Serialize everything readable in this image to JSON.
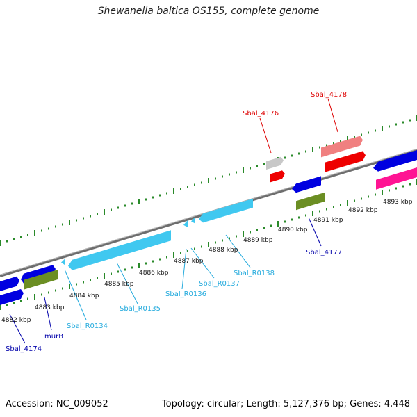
{
  "title": "Shewanella baltica OS155, complete genome",
  "accession": "Accession: NC_009052",
  "topology": "Topology: circular; Length: 5,127,376 bp; Genes: 4,448",
  "colors": {
    "tick_green": "#2a8a2a",
    "backbone": "#8a8a8a",
    "gene_blue": "#0000e0",
    "rna_cyan": "#40c8f0",
    "olive": "#6b8e23",
    "red": "#ee0000",
    "pink_light": "#f08080",
    "magenta": "#ff1493",
    "grey_gene": "#c8c8c8",
    "label_blue": "#0000aa",
    "label_cyan": "#22aadd",
    "label_red": "#dd0000"
  },
  "ticks": [
    {
      "label": "4882 kbp"
    },
    {
      "label": "4883 kbp"
    },
    {
      "label": "4884 kbp"
    },
    {
      "label": "4885 kbp"
    },
    {
      "label": "4886 kbp"
    },
    {
      "label": "4887 kbp"
    },
    {
      "label": "4888 kbp"
    },
    {
      "label": "4889 kbp"
    },
    {
      "label": "4890 kbp"
    },
    {
      "label": "4891 kbp"
    },
    {
      "label": "4892 kbp"
    },
    {
      "label": "4893 kbp"
    }
  ],
  "gene_labels": [
    {
      "text": "Sbal_4174",
      "kind": "blue"
    },
    {
      "text": "murB",
      "kind": "blue"
    },
    {
      "text": "Sbal_R0134",
      "kind": "cyan"
    },
    {
      "text": "Sbal_R0135",
      "kind": "cyan"
    },
    {
      "text": "Sbal_R0136",
      "kind": "cyan"
    },
    {
      "text": "Sbal_R0137",
      "kind": "cyan"
    },
    {
      "text": "Sbal_R0138",
      "kind": "cyan"
    },
    {
      "text": "Sbal_4177",
      "kind": "blue"
    },
    {
      "text": "Sbal_4176",
      "kind": "red"
    },
    {
      "text": "Sbal_4178",
      "kind": "red"
    }
  ]
}
